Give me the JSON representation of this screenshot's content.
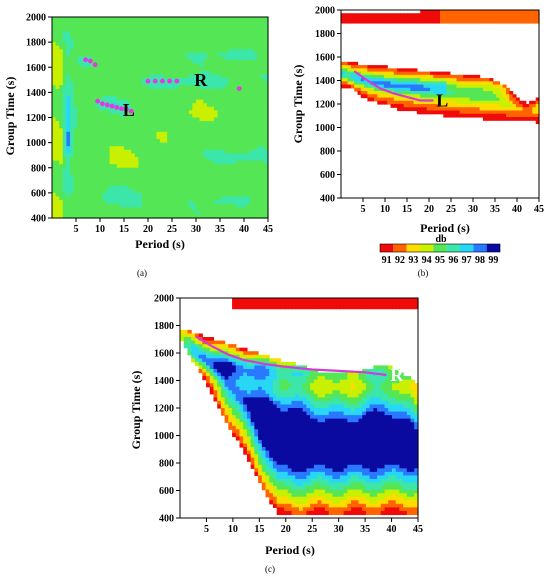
{
  "chart_data": [
    {
      "type": "heatmap",
      "panel_tag": "(a)",
      "xlabel": "Period (s)",
      "ylabel": "Group Time (s)",
      "xlim": [
        0,
        45
      ],
      "ylim": [
        400,
        2000
      ],
      "x_ticks": [
        5,
        10,
        15,
        20,
        25,
        30,
        35,
        40,
        45
      ],
      "y_ticks": [
        400,
        600,
        800,
        1000,
        1200,
        1400,
        1600,
        1800,
        2000
      ],
      "background_level_db": 95,
      "mode_labels": [
        {
          "text": "L",
          "x": 16,
          "y": 1260
        },
        {
          "text": "R",
          "x": 31,
          "y": 1500
        }
      ],
      "picks": [
        {
          "name": "L",
          "points": [
            [
              7,
              1660
            ],
            [
              8,
              1650
            ],
            [
              9,
              1620
            ],
            [
              9.5,
              1330
            ],
            [
              10.5,
              1310
            ],
            [
              11.5,
              1300
            ],
            [
              12.5,
              1290
            ],
            [
              13.5,
              1280
            ],
            [
              14.5,
              1270
            ],
            [
              15.5,
              1265
            ],
            [
              16.5,
              1250
            ]
          ]
        },
        {
          "name": "R",
          "points": [
            [
              20,
              1490
            ],
            [
              21.5,
              1490
            ],
            [
              23,
              1490
            ],
            [
              24.5,
              1490
            ],
            [
              26,
              1490
            ],
            [
              39,
              1430
            ]
          ]
        }
      ]
    },
    {
      "type": "heatmap",
      "panel_tag": "(b)",
      "xlabel": "Period (s)",
      "ylabel": "Group Time (s)",
      "xlim": [
        0,
        45
      ],
      "ylim": [
        400,
        2000
      ],
      "x_ticks": [
        5,
        10,
        15,
        20,
        25,
        30,
        35,
        40,
        45
      ],
      "y_ticks": [
        400,
        600,
        800,
        1000,
        1200,
        1400,
        1600,
        1800,
        2000
      ],
      "mode_labels": [
        {
          "text": "L",
          "x": 23,
          "y": 1230
        }
      ],
      "dispersion_curve": {
        "name": "L",
        "points": [
          [
            3,
            1480
          ],
          [
            6,
            1400
          ],
          [
            9,
            1330
          ],
          [
            12,
            1290
          ],
          [
            15,
            1260
          ],
          [
            18,
            1230
          ],
          [
            21,
            1230
          ]
        ]
      },
      "colorbar": {
        "title": "db",
        "levels": [
          91,
          92,
          93,
          94,
          95,
          96,
          97,
          98,
          99
        ],
        "colors": [
          "#f00a0a",
          "#ff6400",
          "#ffdc00",
          "#c8f000",
          "#55e655",
          "#3ce6aa",
          "#28d7f5",
          "#2a78ff",
          "#0a0aa0"
        ]
      }
    },
    {
      "type": "heatmap",
      "panel_tag": "(c)",
      "xlabel": "Period (s)",
      "ylabel": "Group Time (s)",
      "xlim": [
        0,
        45
      ],
      "ylim": [
        400,
        2000
      ],
      "x_ticks": [
        5,
        10,
        15,
        20,
        25,
        30,
        35,
        40,
        45
      ],
      "y_ticks": [
        400,
        600,
        800,
        1000,
        1200,
        1400,
        1600,
        1800,
        2000
      ],
      "mode_labels": [
        {
          "text": "R",
          "x": 41,
          "y": 1440
        }
      ],
      "dispersion_curve": {
        "name": "R",
        "points": [
          [
            3,
            1720
          ],
          [
            6,
            1650
          ],
          [
            9,
            1590
          ],
          [
            12,
            1550
          ],
          [
            16,
            1520
          ],
          [
            20,
            1500
          ],
          [
            25,
            1480
          ],
          [
            30,
            1470
          ],
          [
            35,
            1460
          ],
          [
            39,
            1440
          ]
        ]
      }
    }
  ]
}
